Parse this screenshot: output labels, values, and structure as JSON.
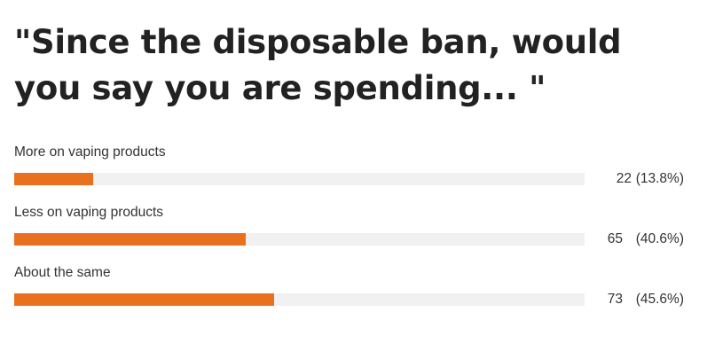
{
  "chart_data": {
    "type": "bar",
    "title": "\"Since the disposable ban, would you say you are spending... \"",
    "categories": [
      "More on vaping products",
      "Less on vaping products",
      "About the same"
    ],
    "counts": [
      22,
      65,
      73
    ],
    "percent_labels": [
      "(13.8%)",
      "(40.6%)",
      "(45.6%)"
    ],
    "percentages": [
      13.8,
      40.6,
      45.6
    ],
    "orientation": "horizontal",
    "xlim": [
      0,
      100
    ],
    "grid": false,
    "bar_color": "#e8701f",
    "track_color": "#f1f1f1"
  }
}
